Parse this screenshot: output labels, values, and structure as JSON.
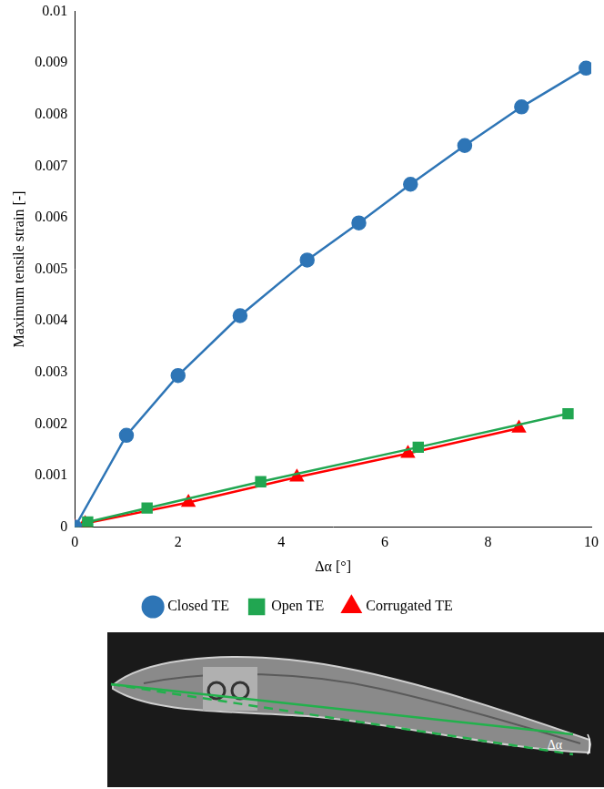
{
  "chart_data": {
    "type": "line",
    "x_label": "Δα [°]",
    "y_label": "Maximum tensile strain [-]",
    "xlim": [
      0,
      10
    ],
    "xticks": [
      0,
      2,
      4,
      6,
      8,
      10
    ],
    "ylim": [
      0,
      0.01
    ],
    "yticks": [
      0,
      0.001,
      0.002,
      0.003,
      0.004,
      0.005,
      0.006,
      0.007,
      0.008,
      0.009,
      0.01
    ],
    "grid": false,
    "legend": "bottom",
    "series": [
      {
        "name": "Closed TE",
        "color": "#2e75b6",
        "marker": "circle",
        "x": [
          0,
          1.0,
          2.0,
          3.2,
          4.5,
          5.5,
          6.5,
          7.55,
          8.65,
          9.9
        ],
        "values": [
          0,
          0.00178,
          0.00294,
          0.0041,
          0.00518,
          0.0059,
          0.00665,
          0.0074,
          0.00815,
          0.0089
        ]
      },
      {
        "name": "Open TE",
        "color": "#21a651",
        "marker": "square",
        "x": [
          0,
          0.25,
          1.4,
          3.6,
          6.65,
          9.55
        ],
        "values": [
          0,
          0.0001,
          0.00037,
          0.00088,
          0.00155,
          0.0022
        ]
      },
      {
        "name": "Corrugated TE",
        "color": "#ff0000",
        "marker": "triangle",
        "x": [
          0,
          0.2,
          2.2,
          4.3,
          6.45,
          8.6
        ],
        "values": [
          0,
          7e-05,
          0.00048,
          0.00097,
          0.00143,
          0.00192
        ]
      }
    ]
  },
  "photo_annotation": "Δα"
}
